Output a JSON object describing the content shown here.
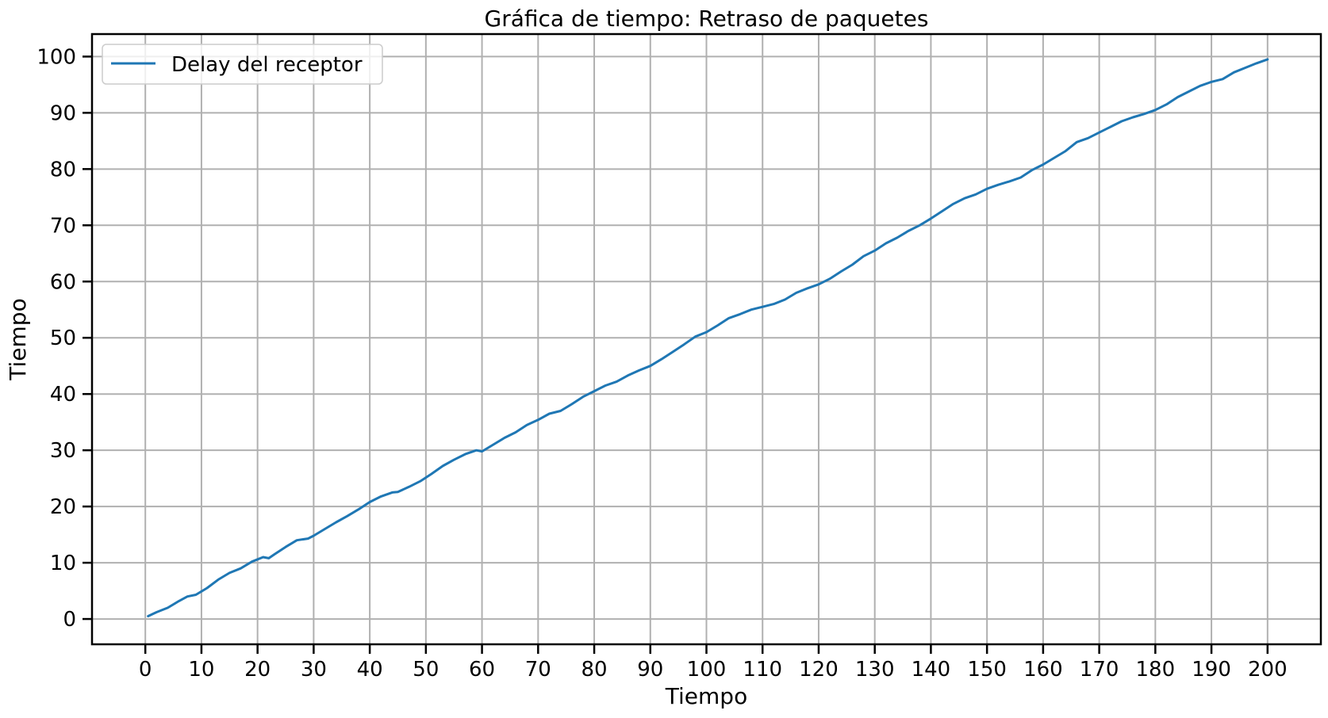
{
  "chart_data": {
    "type": "line",
    "title": "Gráfica de tiempo: Retraso de paquetes",
    "xlabel": "Tiempo",
    "ylabel": "Tiempo",
    "xlim": [
      -9.5,
      209.5
    ],
    "ylim": [
      -4.5,
      104
    ],
    "grid": true,
    "legend_position": "top-left",
    "x_ticks": [
      0,
      10,
      20,
      30,
      40,
      50,
      60,
      70,
      80,
      90,
      100,
      110,
      120,
      130,
      140,
      150,
      160,
      170,
      180,
      190,
      200
    ],
    "x_tick_labels": [
      "0",
      "10",
      "20",
      "30",
      "40",
      "50",
      "60",
      "70",
      "80",
      "90",
      "100",
      "110",
      "120",
      "130",
      "140",
      "150",
      "160",
      "170",
      "180",
      "190",
      "200"
    ],
    "y_ticks": [
      0,
      10,
      20,
      30,
      40,
      50,
      60,
      70,
      80,
      90,
      100
    ],
    "y_tick_labels": [
      "0",
      "10",
      "20",
      "30",
      "40",
      "50",
      "60",
      "70",
      "80",
      "90",
      "100"
    ],
    "colors": {
      "series": "#1f77b4",
      "grid": "#b0b0b0",
      "axes": "#000000"
    },
    "series": [
      {
        "name": "Delay del receptor",
        "x": [
          0.5,
          2,
          4,
          6,
          7.5,
          9,
          11,
          13,
          15,
          17,
          19,
          21,
          22,
          23,
          25,
          27,
          29,
          30,
          32,
          34,
          36,
          38,
          40,
          42,
          44,
          45,
          47,
          49,
          51,
          53,
          55,
          57,
          59,
          60,
          62,
          64,
          66,
          68,
          70,
          72,
          74,
          76,
          78,
          80,
          82,
          84,
          86,
          88,
          90,
          92,
          94,
          96,
          98,
          100,
          102,
          104,
          106,
          108,
          110,
          112,
          114,
          116,
          118,
          120,
          122,
          124,
          126,
          128,
          130,
          132,
          134,
          136,
          138,
          140,
          142,
          144,
          146,
          148,
          150,
          152,
          154,
          156,
          158,
          160,
          162,
          164,
          166,
          168,
          170,
          172,
          174,
          176,
          178,
          180,
          182,
          184,
          186,
          188,
          190,
          192,
          194,
          196,
          198,
          200
        ],
        "y": [
          0.5,
          1.2,
          2.0,
          3.2,
          4.0,
          4.3,
          5.5,
          7.0,
          8.2,
          9.0,
          10.2,
          11.0,
          10.8,
          11.5,
          12.8,
          14.0,
          14.3,
          14.8,
          16.0,
          17.2,
          18.3,
          19.5,
          20.8,
          21.8,
          22.5,
          22.6,
          23.5,
          24.5,
          25.8,
          27.2,
          28.3,
          29.3,
          30.0,
          29.8,
          31.0,
          32.2,
          33.2,
          34.5,
          35.4,
          36.5,
          37.0,
          38.2,
          39.5,
          40.5,
          41.5,
          42.2,
          43.3,
          44.2,
          45.0,
          46.2,
          47.5,
          48.8,
          50.2,
          51.0,
          52.2,
          53.5,
          54.2,
          55.0,
          55.5,
          56.0,
          56.8,
          58.0,
          58.8,
          59.5,
          60.5,
          61.8,
          63.0,
          64.5,
          65.5,
          66.8,
          67.8,
          69.0,
          70.0,
          71.2,
          72.5,
          73.8,
          74.8,
          75.5,
          76.5,
          77.2,
          77.8,
          78.5,
          79.8,
          80.8,
          82.0,
          83.2,
          84.8,
          85.5,
          86.5,
          87.5,
          88.5,
          89.2,
          89.8,
          90.5,
          91.5,
          92.8,
          93.8,
          94.8,
          95.5,
          96.0,
          97.2,
          98.0,
          98.8,
          99.5
        ]
      }
    ]
  }
}
